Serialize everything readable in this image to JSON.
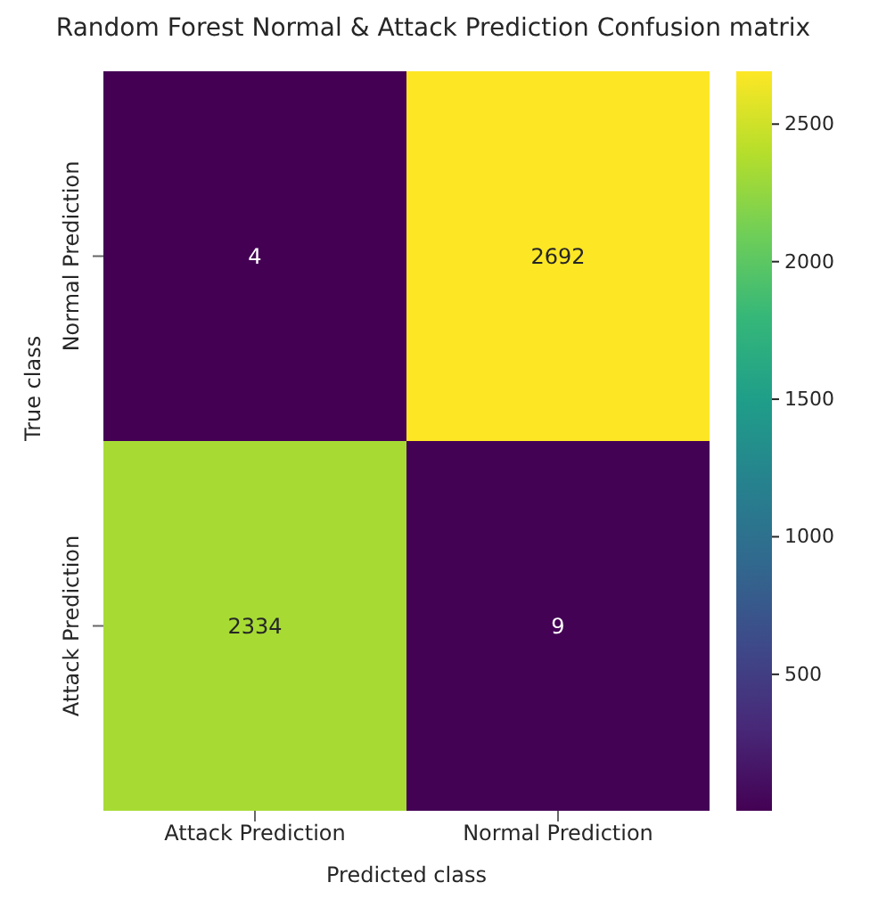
{
  "chart_data": {
    "type": "heatmap",
    "title": "Random Forest Normal & Attack Prediction Confusion matrix",
    "xlabel": "Predicted class",
    "ylabel": "True class",
    "categories": [
      "Attack Prediction",
      "Normal Prediction"
    ],
    "y_categories": [
      "Normal Prediction",
      "Attack Prediction"
    ],
    "cells": [
      [
        4,
        2692
      ],
      [
        2334,
        9
      ]
    ],
    "data_labels": true,
    "clim": [
      4,
      2692
    ],
    "cticks": [
      500,
      1000,
      1500,
      2000,
      2500
    ]
  }
}
